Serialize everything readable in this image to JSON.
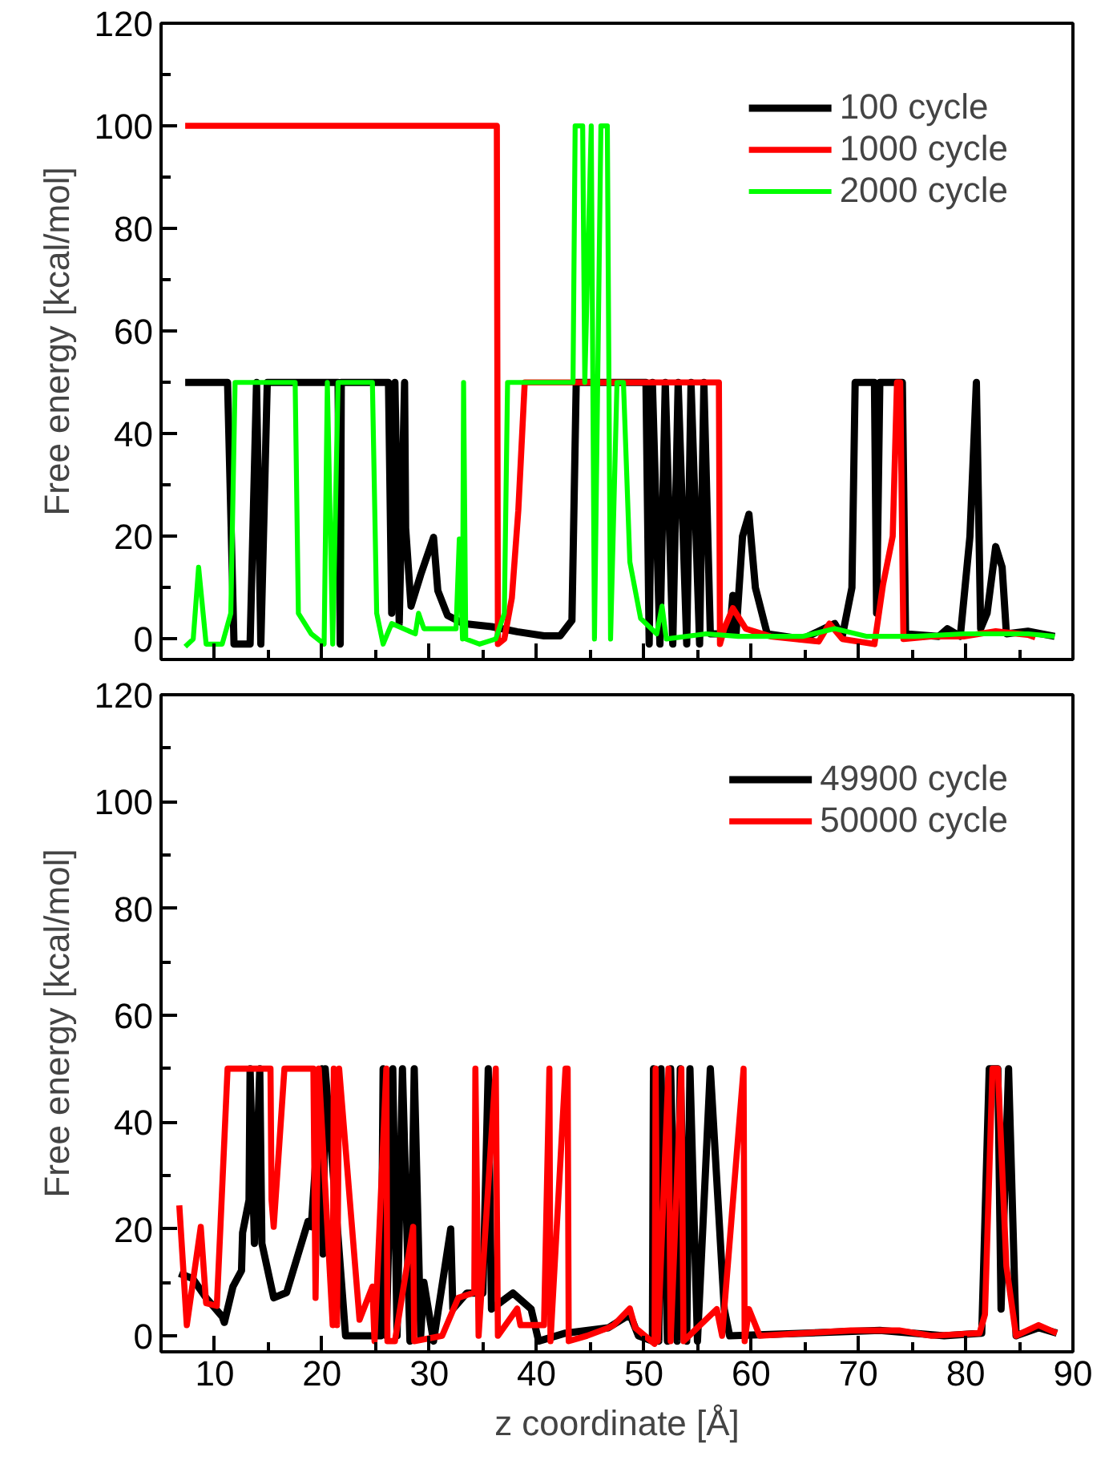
{
  "chart_data": [
    {
      "type": "line",
      "ylabel": "Free energy [kcal/mol]",
      "xlim": [
        5,
        90
      ],
      "xticks": [
        10,
        20,
        30,
        40,
        50,
        60,
        70,
        80,
        90
      ],
      "ylim": [
        -4,
        120
      ],
      "yticks": [
        0,
        20,
        40,
        60,
        80,
        100,
        120
      ],
      "tick_labels": "y",
      "grid": false,
      "legend": "top right",
      "line_style": "solid",
      "marker": "none",
      "series": [
        {
          "name": "100 cycle",
          "color": "#000000",
          "x": [
            7.25,
            11.2,
            11.8,
            13.3,
            13.9,
            14.3,
            14.9,
            21.5,
            21.7,
            21.8,
            26.2,
            26.5,
            26.8,
            27.2,
            27.7,
            27.8,
            28.3,
            29.2,
            30.4,
            30.8,
            31.7,
            33.2,
            35.8,
            38.2,
            40.7,
            42.2,
            43.3,
            43.7,
            50.2,
            50.5,
            50.8,
            51.5,
            52.0,
            52.7,
            53.2,
            54.0,
            54.4,
            55.2,
            55.6,
            56.2,
            58.0,
            58.3,
            58.6,
            59.2,
            59.8,
            60.4,
            61.5,
            64.8,
            67.8,
            68.5,
            69.4,
            69.7,
            71.5,
            71.7,
            72.0,
            74.1,
            74.4,
            77.5,
            78.3,
            79.5,
            80.4,
            81.0,
            81.4,
            82.0,
            82.8,
            83.4,
            83.8,
            85.8,
            88.3
          ],
          "values": [
            50,
            50,
            -1,
            -1,
            50,
            -1,
            50,
            50,
            -1,
            50,
            50,
            5,
            50,
            3,
            50,
            21.6,
            6.4,
            12.5,
            19.8,
            9.4,
            4.6,
            3,
            2.4,
            1.4,
            0.6,
            0.6,
            3.6,
            50,
            50,
            -1,
            50,
            -1,
            50,
            -1,
            50,
            -1,
            50,
            -1,
            50,
            1,
            1,
            8.5,
            1,
            20,
            24.3,
            10,
            1,
            0,
            3,
            0.5,
            10,
            50,
            50,
            5,
            50,
            50,
            1,
            0.5,
            2,
            0.5,
            20,
            50,
            2,
            5,
            18,
            14,
            1,
            1.5,
            0.5
          ]
        },
        {
          "name": "1000 cycle",
          "color": "#ff0000",
          "x": [
            7.25,
            36.3,
            36.4,
            37.0,
            37.7,
            38.3,
            38.9,
            57.0,
            57.1,
            57.5,
            58.3,
            59.5,
            61.8,
            66.3,
            67.3,
            68.5,
            71.5,
            72.3,
            73.2,
            73.6,
            73.9,
            74.2,
            76.8,
            79.8,
            82.8,
            85.8,
            86.5
          ],
          "values": [
            100,
            100,
            -1,
            0,
            8,
            25,
            50,
            50,
            -1,
            2,
            6,
            2,
            0.5,
            -0.5,
            3,
            0,
            -1,
            10.6,
            20,
            50,
            50,
            0,
            0.5,
            0.5,
            1.5,
            0.8,
            0.3
          ]
        },
        {
          "name": "2000 cycle",
          "color": "#00ff00",
          "x": [
            7.25,
            8.0,
            8.5,
            9.2,
            10.7,
            11.5,
            11.9,
            17.5,
            17.8,
            19.0,
            20.2,
            20.5,
            21.0,
            21.5,
            24.7,
            25.1,
            25.7,
            26.5,
            28.7,
            29.0,
            29.5,
            32.5,
            32.8,
            33.1,
            33.2,
            33.4,
            34.7,
            36.2,
            37.0,
            37.3,
            43.4,
            43.6,
            44.3,
            44.5,
            45.1,
            45.4,
            46.0,
            46.6,
            46.9,
            47.5,
            48.1,
            48.7,
            49.7,
            51.2,
            51.7,
            52.1,
            55.8,
            58.8,
            64.8,
            67.8,
            70.8,
            75.3,
            79.8,
            85.8,
            88.3
          ],
          "values": [
            -1.5,
            0,
            14,
            -1,
            -1,
            5,
            50,
            50,
            5,
            1,
            -1,
            50,
            -1,
            50,
            50,
            5,
            -1,
            3,
            1,
            5,
            2,
            2,
            19.5,
            0,
            50,
            0,
            -1,
            0,
            5,
            50,
            50,
            100,
            100,
            50,
            100,
            0,
            100,
            100,
            0,
            50,
            50,
            15,
            4,
            1,
            6.4,
            0,
            1,
            0.5,
            0.5,
            2,
            0.5,
            0.5,
            1,
            1,
            0.5
          ]
        }
      ]
    },
    {
      "type": "line",
      "xlabel": "z coordinate [Å]",
      "ylabel": "Free energy [kcal/mol]",
      "xlim": [
        5,
        90
      ],
      "xticks": [
        10,
        20,
        30,
        40,
        50,
        60,
        70,
        80,
        90
      ],
      "ylim": [
        -3,
        120
      ],
      "yticks": [
        0,
        20,
        40,
        60,
        80,
        100,
        120
      ],
      "grid": false,
      "legend": "top right",
      "line_style": "solid",
      "marker": "none",
      "series": [
        {
          "name": "49900 cycle",
          "color": "#000000",
          "x": [
            6.7,
            7.95,
            9.2,
            10.7,
            10.9,
            11.7,
            12.5,
            12.6,
            13.2,
            13.3,
            13.7,
            14.2,
            14.4,
            15.5,
            16.7,
            18.7,
            19.0,
            20.0,
            20.1,
            20.3,
            22.2,
            25.5,
            25.7,
            26.0,
            26.6,
            27.0,
            27.5,
            28.2,
            28.6,
            29.2,
            29.5,
            30.4,
            32.0,
            32.2,
            33.5,
            35.0,
            35.5,
            35.8,
            37.8,
            39.5,
            40.2,
            42.7,
            46.7,
            48.7,
            49.5,
            50.8,
            50.9,
            51.4,
            51.6,
            52.2,
            52.5,
            53.1,
            53.4,
            54.0,
            54.3,
            55.0,
            56.2,
            57.5,
            58.0,
            65.0,
            72.0,
            78.0,
            81.5,
            82.2,
            83.0,
            83.3,
            84.0,
            84.7,
            86.8,
            88.5
          ],
          "values": [
            11.7,
            10.7,
            7.1,
            3.6,
            2.5,
            9.2,
            12.2,
            19.3,
            25.4,
            50,
            17.3,
            50,
            17.3,
            7.1,
            8.1,
            21.4,
            20.4,
            50,
            15.3,
            50,
            0,
            0,
            50,
            0,
            50,
            0,
            50,
            -1,
            50,
            0,
            10,
            -1,
            20,
            5,
            8,
            8,
            50,
            5,
            8,
            5,
            -1,
            0.5,
            1.5,
            4,
            0,
            -1,
            50,
            -1,
            50,
            -1,
            50,
            -1,
            50,
            -1,
            50,
            -1,
            50,
            5,
            0,
            0.5,
            1,
            0,
            0.5,
            50,
            50,
            5,
            50,
            0,
            1.5,
            0.5
          ]
        },
        {
          "name": "50000 cycle",
          "color": "#ff0000",
          "x": [
            6.7,
            7.4,
            8.7,
            9.2,
            10.2,
            11.2,
            15.2,
            15.3,
            15.5,
            16.5,
            19.2,
            19.4,
            19.7,
            21.0,
            21.1,
            21.4,
            21.6,
            23.5,
            24.7,
            24.9,
            26.0,
            26.1,
            26.8,
            28.5,
            28.6,
            31.2,
            32.7,
            34.2,
            34.3,
            34.6,
            36.2,
            36.4,
            38.2,
            38.5,
            40.7,
            41.2,
            41.3,
            42.7,
            42.9,
            43.0,
            44.7,
            46.7,
            47.2,
            48.7,
            49.2,
            51.0,
            51.1,
            51.3,
            52.3,
            52.5,
            53.5,
            53.7,
            56.8,
            57.3,
            59.3,
            59.4,
            59.8,
            60.8,
            69.3,
            73.8,
            76.8,
            81.3,
            81.8,
            82.5,
            83.0,
            83.8,
            84.7,
            86.8,
            88.5
          ],
          "values": [
            24.4,
            2,
            20.4,
            6.1,
            5.6,
            50,
            50,
            25.4,
            20.4,
            50,
            50,
            7.1,
            50,
            2,
            50,
            2,
            50,
            3,
            9.2,
            -1,
            50,
            -1,
            -1,
            20.4,
            -1,
            0,
            7.1,
            8.1,
            50,
            0,
            50,
            0,
            5.1,
            2,
            2,
            50,
            -1,
            50,
            50,
            -1,
            0,
            1.5,
            2,
            5.1,
            1.5,
            -1.5,
            50,
            -1,
            50,
            -1,
            50,
            -1,
            5,
            0,
            50,
            -1,
            5,
            0,
            1,
            1,
            0,
            0.5,
            4,
            50,
            50,
            13,
            0,
            2,
            0.5
          ]
        }
      ]
    }
  ]
}
